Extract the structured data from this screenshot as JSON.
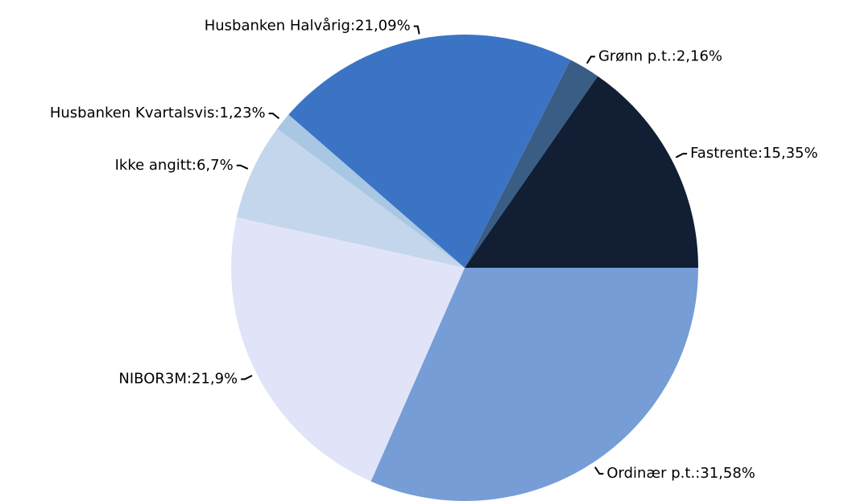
{
  "chart_data": {
    "type": "pie",
    "categories": [
      "Ordinær p.t.",
      "NIBOR3M",
      "Ikke angitt",
      "Husbanken Kvartalsvis",
      "Husbanken Halvårig",
      "Grønn p.t.",
      "Fastrente"
    ],
    "values": [
      31.58,
      21.9,
      6.7,
      1.23,
      21.09,
      2.16,
      15.35
    ],
    "value_labels": [
      ":31,58%",
      ":21,9%",
      ":6,7%",
      ":1,23%",
      ":21,09%",
      ":2,16%",
      ":15,35%"
    ],
    "colors": [
      "#769dd6",
      "#e1e4f8",
      "#c3d6ec",
      "#a8c7e3",
      "#3b74c4",
      "#3a5d85",
      "#111e33"
    ]
  }
}
